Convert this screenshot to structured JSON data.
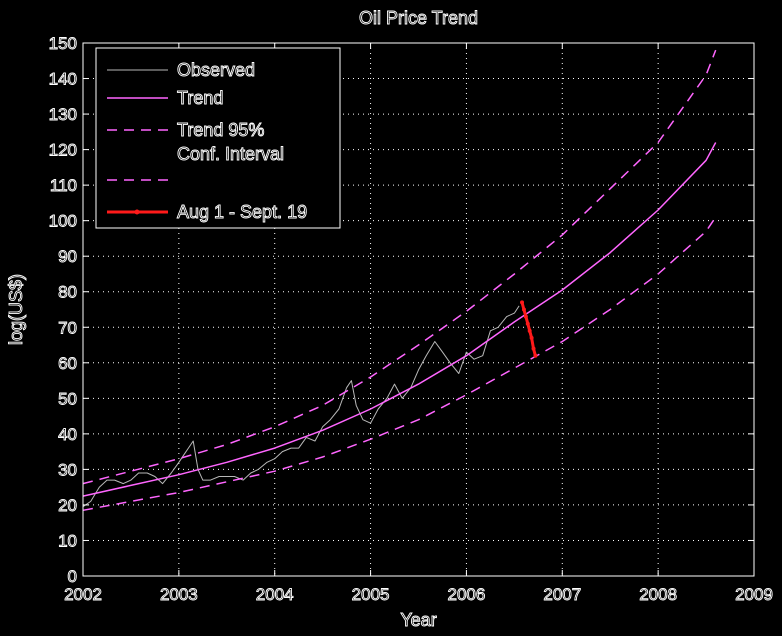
{
  "chart_data": {
    "type": "line",
    "title": "Oil Price Trend",
    "xlabel": "Year",
    "ylabel": "log(US$)",
    "xlim": [
      2002,
      2009
    ],
    "ylim": [
      0,
      150
    ],
    "xticks": [
      2002,
      2003,
      2004,
      2005,
      2006,
      2007,
      2008,
      2009
    ],
    "yticks": [
      0,
      10,
      20,
      30,
      40,
      50,
      60,
      70,
      80,
      90,
      100,
      110,
      120,
      130,
      140,
      150
    ],
    "grid": true,
    "legend_position": "top-left",
    "colors": {
      "background": "#000000",
      "axes_border": "#ffffff",
      "grid": "#ffffff",
      "observed": "#b8b8b8",
      "trend": "#ff66ff",
      "aug_sept": "#ff1a1a"
    },
    "series": [
      {
        "name": "Observed",
        "style": "solid",
        "x": [
          2002.0,
          2002.08,
          2002.17,
          2002.25,
          2002.33,
          2002.42,
          2002.5,
          2002.58,
          2002.67,
          2002.75,
          2002.83,
          2002.92,
          2003.0,
          2003.05,
          2003.1,
          2003.15,
          2003.2,
          2003.25,
          2003.33,
          2003.42,
          2003.5,
          2003.58,
          2003.67,
          2003.75,
          2003.83,
          2003.92,
          2004.0,
          2004.08,
          2004.17,
          2004.25,
          2004.33,
          2004.42,
          2004.5,
          2004.58,
          2004.67,
          2004.75,
          2004.8,
          2004.85,
          2004.92,
          2005.0,
          2005.08,
          2005.17,
          2005.25,
          2005.33,
          2005.42,
          2005.5,
          2005.58,
          2005.67,
          2005.75,
          2005.83,
          2005.92,
          2006.0,
          2006.08,
          2006.17,
          2006.25,
          2006.33,
          2006.42,
          2006.5,
          2006.55
        ],
        "values": [
          19.5,
          21,
          25,
          27,
          27,
          26,
          27,
          29,
          29,
          28,
          26,
          29,
          32,
          34,
          36,
          38,
          30,
          27,
          27,
          28,
          28,
          28,
          27,
          29,
          30,
          32,
          33,
          35,
          36,
          36,
          39,
          38,
          42,
          44,
          47,
          53,
          55,
          48,
          44,
          43,
          47,
          50,
          54,
          50,
          53,
          58,
          62,
          66,
          63,
          60,
          57,
          63,
          61,
          62,
          69,
          70,
          73,
          74,
          76
        ]
      },
      {
        "name": "Trend",
        "style": "solid",
        "x": [
          2002.0,
          2002.5,
          2003.0,
          2003.5,
          2004.0,
          2004.5,
          2005.0,
          2005.5,
          2006.0,
          2006.5,
          2007.0,
          2007.5,
          2008.0,
          2008.5,
          2008.6
        ],
        "values": [
          22.5,
          25.5,
          28.5,
          32,
          36,
          41,
          47,
          54,
          62,
          71.5,
          80.5,
          91,
          103,
          117,
          122
        ]
      },
      {
        "name": "Trend 95% Conf. Interval",
        "style": "dashed",
        "x": [
          2002.0,
          2002.5,
          2003.0,
          2003.5,
          2004.0,
          2004.5,
          2005.0,
          2005.5,
          2006.0,
          2006.5,
          2007.0,
          2007.5,
          2008.0,
          2008.5,
          2008.6
        ],
        "values": [
          26,
          29.5,
          33,
          37,
          42,
          48,
          56,
          65,
          74.5,
          85,
          96,
          109,
          122,
          141,
          148
        ]
      },
      {
        "name": "",
        "style": "dashed",
        "x": [
          2002.0,
          2002.5,
          2003.0,
          2003.5,
          2004.0,
          2004.5,
          2005.0,
          2005.5,
          2006.0,
          2006.5,
          2007.0,
          2007.5,
          2008.0,
          2008.5,
          2008.6
        ],
        "values": [
          18.5,
          21,
          23.5,
          26.5,
          29.5,
          33.5,
          38.5,
          44,
          51,
          58.5,
          66,
          75,
          85,
          97,
          101
        ]
      },
      {
        "name": "Aug 1 - Sept. 19",
        "style": "solid-marker",
        "x": [
          2006.58,
          2006.6,
          2006.62,
          2006.64,
          2006.66,
          2006.68,
          2006.7,
          2006.72
        ],
        "values": [
          77,
          75,
          73,
          71,
          69,
          67,
          64,
          62
        ]
      }
    ]
  }
}
